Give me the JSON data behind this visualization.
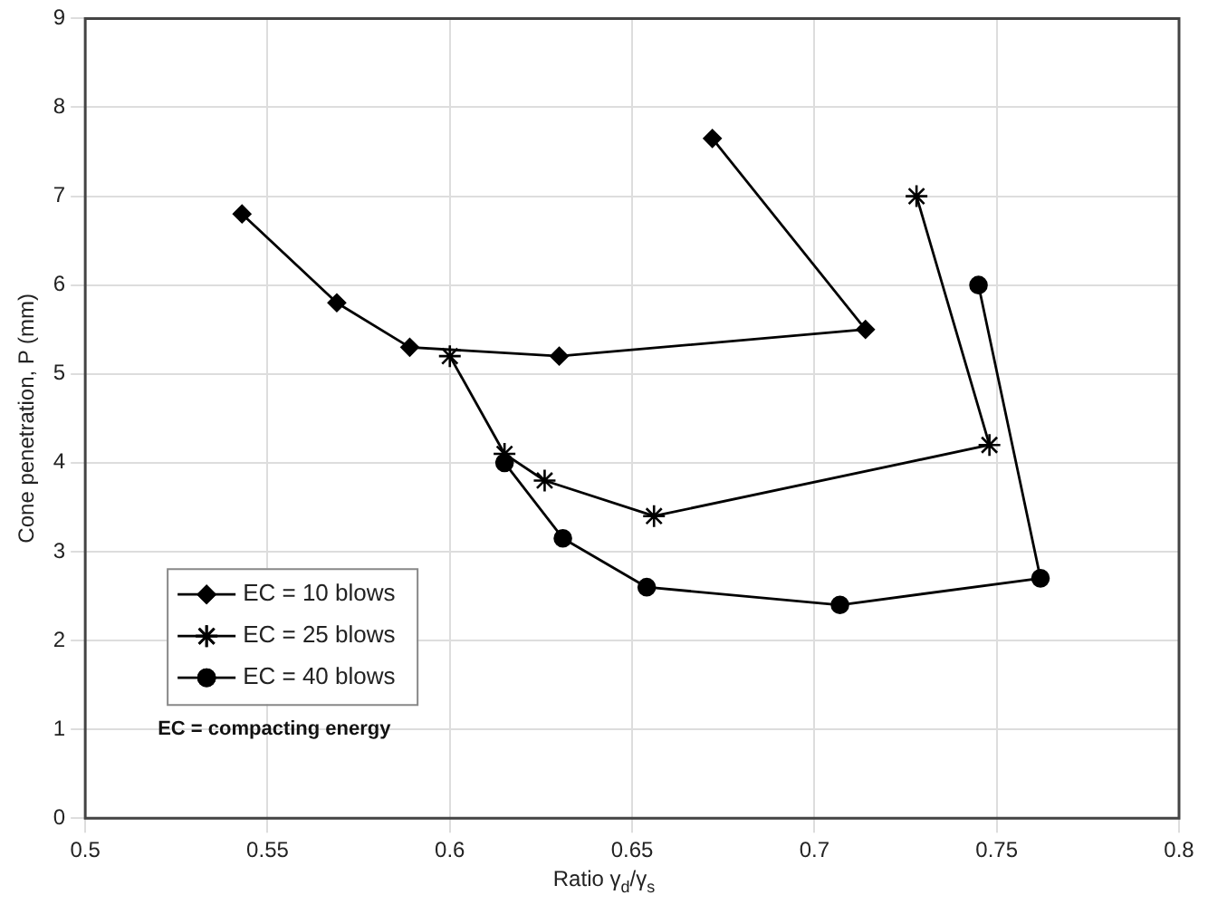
{
  "chart_data": {
    "type": "line",
    "xlabel": "Ratio γ$_{d}$/γ$_{s}$",
    "ylabel": "Cone penetration, P (mm)",
    "xlim": [
      0.5,
      0.8
    ],
    "xticks": [
      0.5,
      0.55,
      0.6,
      0.65,
      0.7,
      0.75,
      0.8
    ],
    "ylim": [
      0,
      9
    ],
    "yticks": [
      0,
      1,
      2,
      3,
      4,
      5,
      6,
      7,
      8,
      9
    ],
    "grid": true,
    "legend": "bottom left",
    "line_style": "solid",
    "annotations": [
      "EC = compacting energy"
    ],
    "series": [
      {
        "name": "EC = 10 blows",
        "color": "#000000",
        "marker": "diamond",
        "x": [
          0.543,
          0.569,
          0.589,
          0.63,
          0.714,
          0.672
        ],
        "values": [
          6.8,
          5.8,
          5.3,
          5.2,
          5.5,
          7.65
        ]
      },
      {
        "name": "EC = 25 blows",
        "color": "#000000",
        "marker": "cross",
        "x": [
          0.6,
          0.615,
          0.626,
          0.656,
          0.748,
          0.728
        ],
        "values": [
          5.2,
          4.1,
          3.8,
          3.4,
          4.2,
          7.0
        ]
      },
      {
        "name": "EC = 40 blows",
        "color": "#000000",
        "marker": "circle",
        "x": [
          0.615,
          0.631,
          0.654,
          0.707,
          0.762,
          0.745
        ],
        "values": [
          4.0,
          3.15,
          2.6,
          2.4,
          2.7,
          6.0
        ]
      }
    ]
  }
}
